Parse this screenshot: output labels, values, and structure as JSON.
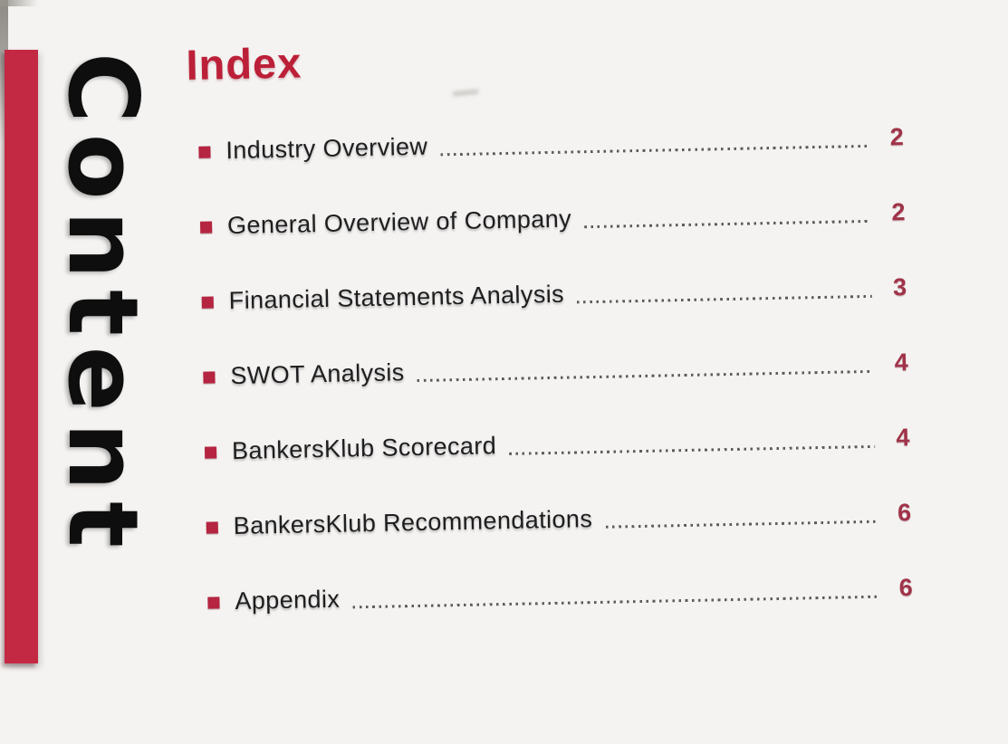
{
  "page": {
    "banner_vertical_text": "Content",
    "heading": "Index",
    "toc": [
      {
        "label": "Industry Overview",
        "page": "2"
      },
      {
        "label": "General Overview of Company",
        "page": "2"
      },
      {
        "label": "Financial Statements Analysis",
        "page": "3"
      },
      {
        "label": "SWOT Analysis",
        "page": "4"
      },
      {
        "label": "BankersKlub Scorecard",
        "page": "4"
      },
      {
        "label": "BankersKlub Recommendations",
        "page": "6"
      },
      {
        "label": "Appendix",
        "page": "6"
      }
    ],
    "colors": {
      "accent_bar": "#c42944",
      "heading_red": "#bc2038",
      "bullet_red": "#b52440",
      "page_number_red": "#a03349",
      "text_black": "#1e1e20",
      "paper": "#f5f4f2"
    }
  }
}
